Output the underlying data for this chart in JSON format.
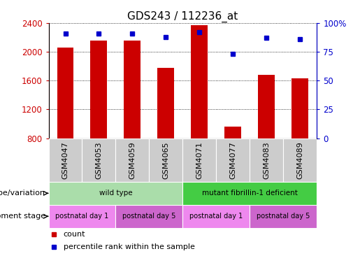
{
  "title": "GDS243 / 112236_at",
  "samples": [
    "GSM4047",
    "GSM4053",
    "GSM4059",
    "GSM4065",
    "GSM4071",
    "GSM4077",
    "GSM4083",
    "GSM4089"
  ],
  "counts": [
    2055,
    2155,
    2155,
    1775,
    2370,
    960,
    1680,
    1630
  ],
  "percentiles": [
    91,
    91,
    91,
    88,
    92,
    73,
    87,
    86
  ],
  "ylim_left": [
    800,
    2400
  ],
  "ylim_right": [
    0,
    100
  ],
  "yticks_left": [
    800,
    1200,
    1600,
    2000,
    2400
  ],
  "yticks_right": [
    0,
    25,
    50,
    75,
    100
  ],
  "bar_color": "#cc0000",
  "dot_color": "#0000cc",
  "bar_width": 0.5,
  "geno_groups": [
    {
      "label": "wild type",
      "start": 0,
      "end": 4,
      "color": "#aaddaa"
    },
    {
      "label": "mutant fibrillin-1 deficient",
      "start": 4,
      "end": 8,
      "color": "#44cc44"
    }
  ],
  "dev_groups": [
    {
      "label": "postnatal day 1",
      "start": 0,
      "end": 2,
      "color": "#ee88ee"
    },
    {
      "label": "postnatal day 5",
      "start": 2,
      "end": 4,
      "color": "#cc66cc"
    },
    {
      "label": "postnatal day 1",
      "start": 4,
      "end": 6,
      "color": "#ee88ee"
    },
    {
      "label": "postnatal day 5",
      "start": 6,
      "end": 8,
      "color": "#cc66cc"
    }
  ],
  "sample_bg": "#cccccc",
  "genotype_label": "genotype/variation",
  "dev_stage_label": "development stage",
  "title_fontsize": 11,
  "tick_fontsize": 8.5,
  "label_fontsize": 8,
  "row_fontsize": 7.5
}
